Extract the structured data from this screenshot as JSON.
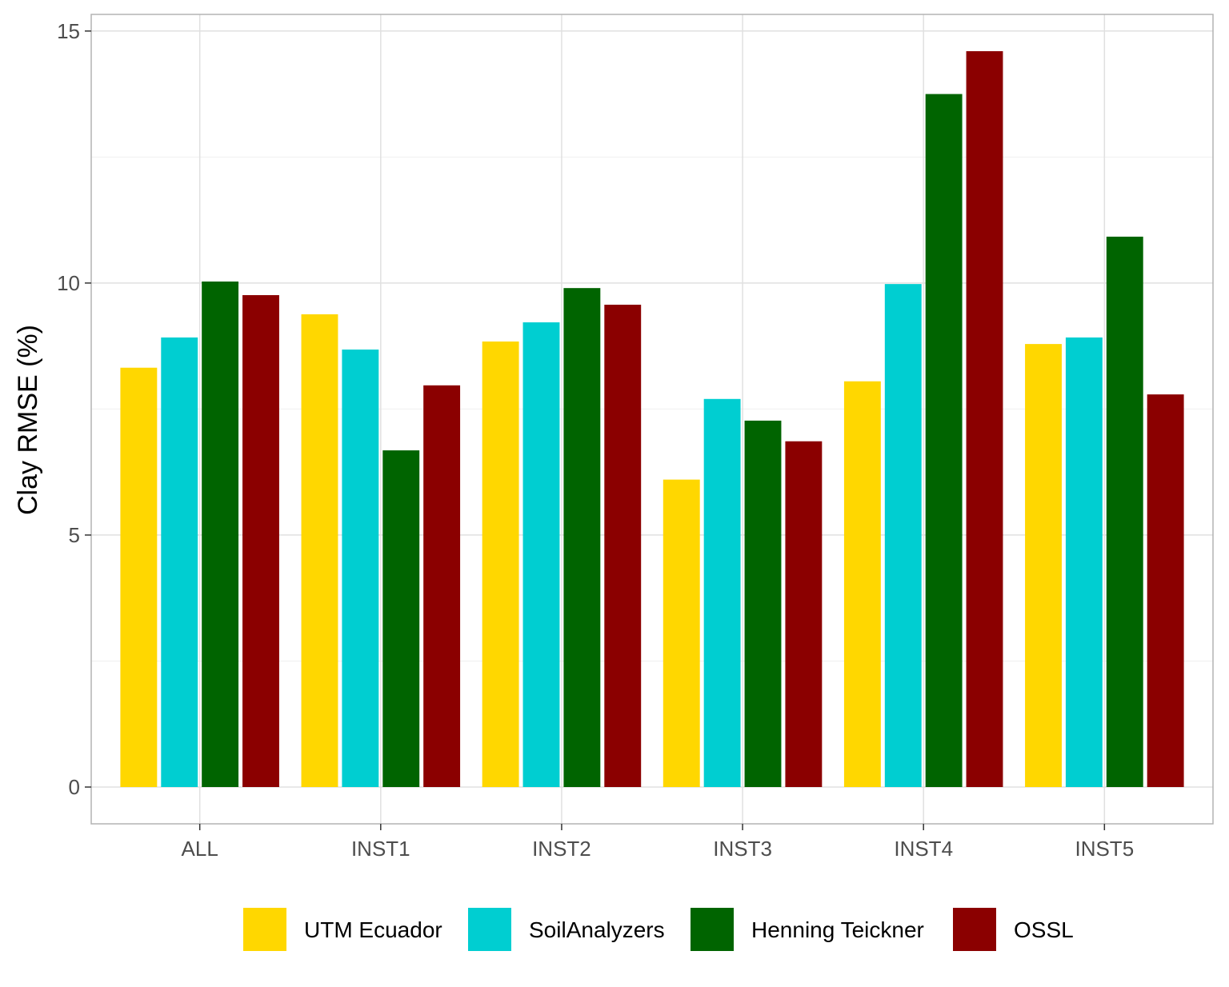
{
  "chart_data": {
    "type": "bar",
    "title": "",
    "xlabel": "",
    "ylabel": "Clay RMSE (%)",
    "ylim": [
      0,
      15
    ],
    "yticks": [
      0,
      5,
      10,
      15
    ],
    "grid": true,
    "legend_position": "bottom",
    "categories": [
      "ALL",
      "INST1",
      "INST2",
      "INST3",
      "INST4",
      "INST5"
    ],
    "series": [
      {
        "name": "UTM Ecuador",
        "color": "#FFD700",
        "values": [
          8.32,
          9.38,
          8.84,
          6.1,
          8.05,
          8.79
        ]
      },
      {
        "name": "SoilAnalyzers",
        "color": "#00CED1",
        "values": [
          8.92,
          8.68,
          9.22,
          7.7,
          9.98,
          8.92
        ]
      },
      {
        "name": "Henning Teickner",
        "color": "#006400",
        "values": [
          10.03,
          6.68,
          9.9,
          7.27,
          13.75,
          10.92
        ]
      },
      {
        "name": "OSSL",
        "color": "#8B0000",
        "values": [
          9.76,
          7.97,
          9.57,
          6.86,
          14.6,
          7.79
        ]
      }
    ]
  }
}
